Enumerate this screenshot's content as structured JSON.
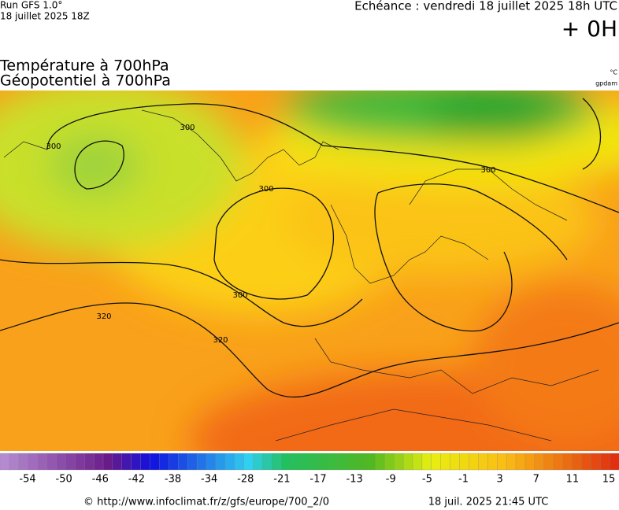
{
  "header": {
    "run": "Run GFS 1.0°",
    "run_date": "18 juillet 2025 18Z",
    "forecast": "Echéance : vendredi 18 juillet 2025 18h UTC",
    "lead": "+ 0H"
  },
  "titles": [
    "Température à 700hPa",
    "Géopotentiel à 700hPa"
  ],
  "units": [
    "°C",
    "gpdam"
  ],
  "contour_labels": [
    300,
    300,
    300,
    300,
    300,
    320,
    320
  ],
  "colorbar_ticks": [
    -54,
    -50,
    -46,
    -42,
    -38,
    -34,
    -28,
    -21,
    -17,
    -13,
    -9,
    -5,
    -1,
    3,
    7,
    11,
    15
  ],
  "footer": {
    "source": "© http://www.infoclimat.fr/z/gfs/europe/700_2/0",
    "timestamp": "18 juil. 2025 21:45 UTC"
  }
}
